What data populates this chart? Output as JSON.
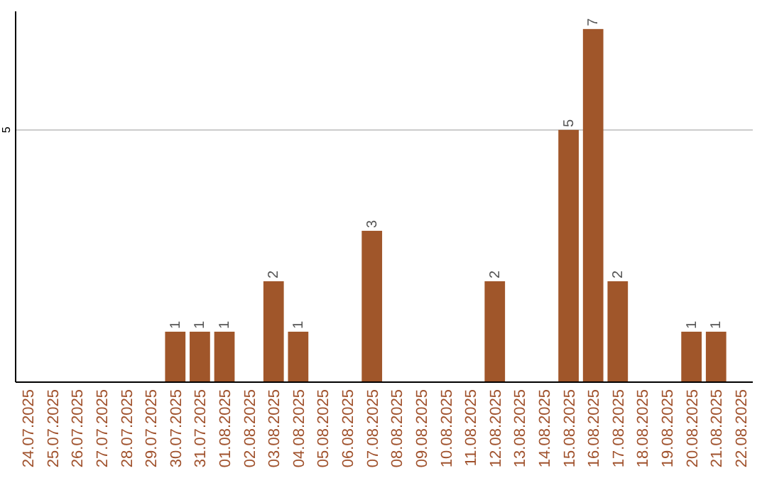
{
  "chart_data": {
    "type": "bar",
    "categories": [
      "24.07.2025",
      "25.07.2025",
      "26.07.2025",
      "27.07.2025",
      "28.07.2025",
      "29.07.2025",
      "30.07.2025",
      "31.07.2025",
      "01.08.2025",
      "02.08.2025",
      "03.08.2025",
      "04.08.2025",
      "05.08.2025",
      "06.08.2025",
      "07.08.2025",
      "08.08.2025",
      "09.08.2025",
      "10.08.2025",
      "11.08.2025",
      "12.08.2025",
      "13.08.2025",
      "14.08.2025",
      "15.08.2025",
      "16.08.2025",
      "17.08.2025",
      "18.08.2025",
      "19.08.2025",
      "20.08.2025",
      "21.08.2025",
      "22.08.2025"
    ],
    "values": [
      0,
      0,
      0,
      0,
      0,
      0,
      1,
      1,
      1,
      0,
      2,
      1,
      0,
      0,
      3,
      0,
      0,
      0,
      0,
      2,
      0,
      0,
      5,
      7,
      2,
      0,
      0,
      1,
      1,
      0
    ],
    "value_labels": [
      null,
      null,
      null,
      null,
      null,
      null,
      "1",
      "1",
      "1",
      null,
      "2",
      "1",
      null,
      null,
      "3",
      null,
      null,
      null,
      null,
      "2",
      null,
      null,
      "5",
      "7",
      "2",
      null,
      null,
      "1",
      "1",
      null
    ],
    "color": "#a0562a",
    "ylim": [
      0,
      7.35
    ],
    "yticks": [
      5
    ],
    "grid": "y"
  }
}
